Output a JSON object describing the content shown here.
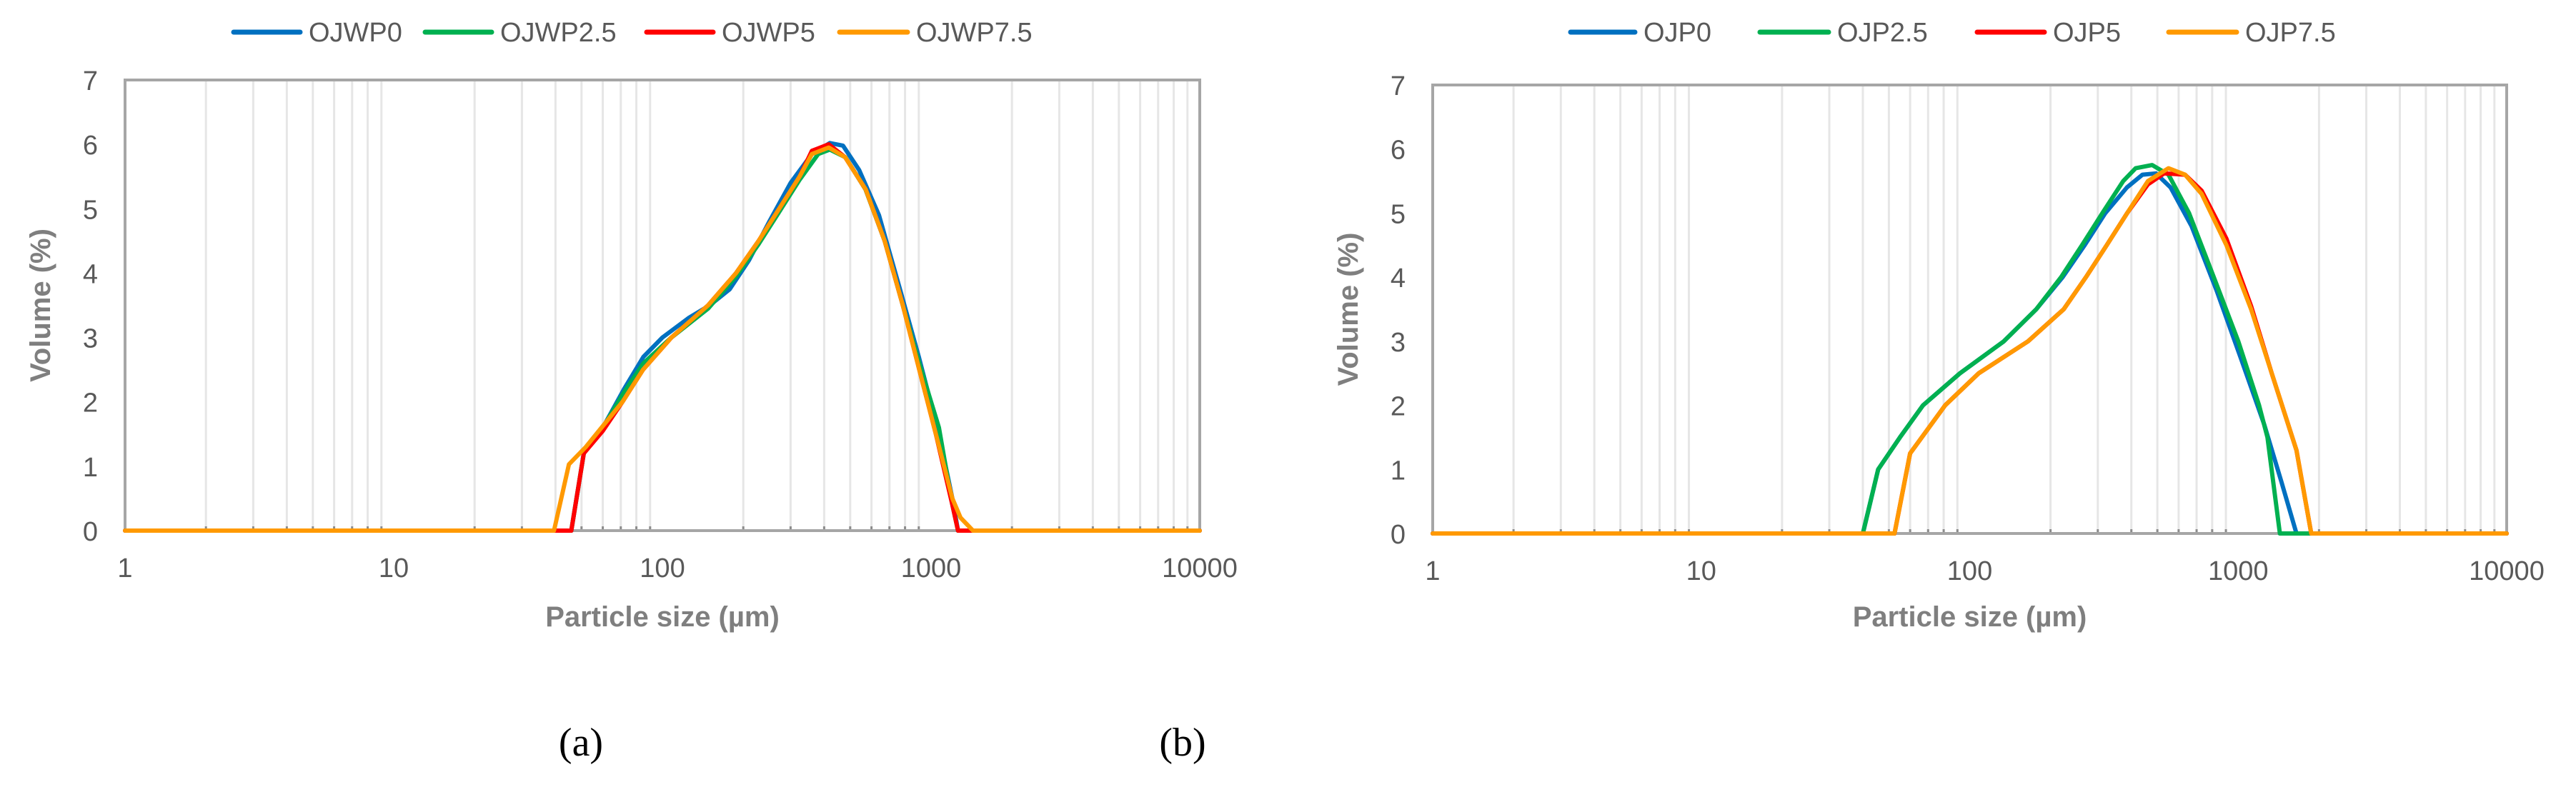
{
  "chart_data": [
    {
      "type": "line",
      "panel_label": "(a)",
      "xlabel": "Particle size (µm)",
      "ylabel": "Volume (%)",
      "x_scale": "log",
      "xlim": [
        1,
        10000
      ],
      "ylim": [
        0,
        7
      ],
      "x_ticks": [
        "1",
        "10",
        "100",
        "1000",
        "10000"
      ],
      "y_ticks": [
        "0",
        "1",
        "2",
        "3",
        "4",
        "5",
        "6",
        "7"
      ],
      "grid": "vertical minor lines",
      "legend": "top",
      "series": [
        {
          "name": "OJWP0",
          "color": "#0070C0",
          "points": [
            [
              1,
              0
            ],
            [
              45.8,
              0
            ],
            [
              51,
              1.2
            ],
            [
              60,
              1.6
            ],
            [
              72,
              2.2
            ],
            [
              85,
              2.7
            ],
            [
              100,
              3.0
            ],
            [
              125,
              3.3
            ],
            [
              150,
              3.5
            ],
            [
              178,
              3.75
            ],
            [
              210,
              4.2
            ],
            [
              250,
              4.8
            ],
            [
              300,
              5.4
            ],
            [
              360,
              5.85
            ],
            [
              420,
              6.02
            ],
            [
              470,
              5.98
            ],
            [
              540,
              5.6
            ],
            [
              640,
              4.9
            ],
            [
              760,
              3.8
            ],
            [
              900,
              2.7
            ],
            [
              1070,
              1.5
            ],
            [
              1200,
              0.5
            ],
            [
              1260,
              0
            ],
            [
              10000,
              0
            ]
          ]
        },
        {
          "name": "OJWP2.5",
          "color": "#00B050",
          "points": [
            [
              1,
              0
            ],
            [
              45.8,
              0
            ],
            [
              51,
              1.2
            ],
            [
              60,
              1.6
            ],
            [
              72,
              2.15
            ],
            [
              85,
              2.6
            ],
            [
              108,
              3.0
            ],
            [
              148,
              3.45
            ],
            [
              188,
              3.95
            ],
            [
              228,
              4.45
            ],
            [
              272,
              4.95
            ],
            [
              324,
              5.45
            ],
            [
              380,
              5.85
            ],
            [
              420,
              5.92
            ],
            [
              480,
              5.8
            ],
            [
              570,
              5.3
            ],
            [
              672,
              4.5
            ],
            [
              785,
              3.5
            ],
            [
              904,
              2.6
            ],
            [
              1070,
              1.6
            ],
            [
              1200,
              0.4
            ],
            [
              1260,
              0
            ],
            [
              10000,
              0
            ]
          ]
        },
        {
          "name": "OJWP5",
          "color": "#FF0000",
          "points": [
            [
              1,
              0
            ],
            [
              45.8,
              0
            ],
            [
              51,
              1.2
            ],
            [
              60,
              1.55
            ],
            [
              71,
              2.0
            ],
            [
              84.7,
              2.5
            ],
            [
              108,
              3.0
            ],
            [
              148,
              3.5
            ],
            [
              188,
              4.0
            ],
            [
              228,
              4.5
            ],
            [
              272,
              5.0
            ],
            [
              324,
              5.5
            ],
            [
              360,
              5.9
            ],
            [
              416,
              6.0
            ],
            [
              479,
              5.8
            ],
            [
              571,
              5.3
            ],
            [
              672,
              4.5
            ],
            [
              785,
              3.5
            ],
            [
              904,
              2.5
            ],
            [
              1042,
              1.5
            ],
            [
              1200,
              0.4
            ],
            [
              1260,
              0
            ],
            [
              10000,
              0
            ]
          ]
        },
        {
          "name": "OJWP7.5",
          "color": "#FF9900",
          "points": [
            [
              1,
              0
            ],
            [
              39.5,
              0
            ],
            [
              44.9,
              1.03
            ],
            [
              51.9,
              1.3
            ],
            [
              71,
              2.0
            ],
            [
              84.7,
              2.5
            ],
            [
              108,
              3.0
            ],
            [
              148,
              3.5
            ],
            [
              188,
              4.0
            ],
            [
              228,
              4.5
            ],
            [
              272,
              5.0
            ],
            [
              324,
              5.5
            ],
            [
              360,
              5.85
            ],
            [
              416,
              5.95
            ],
            [
              479,
              5.8
            ],
            [
              571,
              5.3
            ],
            [
              672,
              4.5
            ],
            [
              785,
              3.5
            ],
            [
              904,
              2.5
            ],
            [
              1042,
              1.5
            ],
            [
              1200,
              0.5
            ],
            [
              1288,
              0.2
            ],
            [
              1432,
              0
            ],
            [
              10000,
              0
            ]
          ]
        }
      ]
    },
    {
      "type": "line",
      "panel_label": "(b)",
      "xlabel": "Particle size (µm)",
      "ylabel": "Volume (%)",
      "x_scale": "log",
      "xlim": [
        1,
        10000
      ],
      "ylim": [
        0,
        7
      ],
      "x_ticks": [
        "1",
        "10",
        "100",
        "1000",
        "10000"
      ],
      "y_ticks": [
        "0",
        "1",
        "2",
        "3",
        "4",
        "5",
        "6",
        "7"
      ],
      "grid": "vertical minor lines",
      "legend": "top",
      "series": [
        {
          "name": "OJP0",
          "color": "#0070C0",
          "points": [
            [
              1,
              0
            ],
            [
              40,
              0
            ],
            [
              45.6,
              1.0
            ],
            [
              55,
              1.5
            ],
            [
              67,
              2.0
            ],
            [
              92,
              2.5
            ],
            [
              134,
              3.0
            ],
            [
              177,
              3.5
            ],
            [
              222,
              4.0
            ],
            [
              268,
              4.5
            ],
            [
              320,
              5.0
            ],
            [
              385,
              5.4
            ],
            [
              440,
              5.6
            ],
            [
              494,
              5.62
            ],
            [
              560,
              5.4
            ],
            [
              670,
              4.8
            ],
            [
              830,
              3.8
            ],
            [
              1030,
              2.7
            ],
            [
              1250,
              1.7
            ],
            [
              1450,
              0.8
            ],
            [
              1648,
              0
            ],
            [
              10000,
              0
            ]
          ]
        },
        {
          "name": "OJP2.5",
          "color": "#00B050",
          "points": [
            [
              1,
              0
            ],
            [
              40,
              0
            ],
            [
              45.6,
              1.0
            ],
            [
              55,
              1.5
            ],
            [
              67,
              2.0
            ],
            [
              92,
              2.5
            ],
            [
              134,
              3.0
            ],
            [
              177,
              3.5
            ],
            [
              219,
              4.0
            ],
            [
              262,
              4.5
            ],
            [
              312,
              5.0
            ],
            [
              373,
              5.5
            ],
            [
              415,
              5.7
            ],
            [
              478,
              5.75
            ],
            [
              550,
              5.6
            ],
            [
              656,
              5.0
            ],
            [
              811,
              4.0
            ],
            [
              1001,
              3.0
            ],
            [
              1196,
              2.0
            ],
            [
              1285,
              1.5
            ],
            [
              1430,
              0
            ],
            [
              10000,
              0
            ]
          ]
        },
        {
          "name": "OJP5",
          "color": "#FF0000",
          "points": [
            [
              1,
              0
            ],
            [
              52.5,
              0
            ],
            [
              60,
              1.25
            ],
            [
              81,
              2.0
            ],
            [
              108,
              2.5
            ],
            [
              165,
              3.0
            ],
            [
              224,
              3.5
            ],
            [
              271,
              4.0
            ],
            [
              324,
              4.5
            ],
            [
              386,
              5.0
            ],
            [
              461,
              5.45
            ],
            [
              530,
              5.62
            ],
            [
              634,
              5.6
            ],
            [
              731,
              5.35
            ],
            [
              904,
              4.6
            ],
            [
              1117,
              3.55
            ],
            [
              1333,
              2.5
            ],
            [
              1648,
              1.3
            ],
            [
              1871,
              0
            ],
            [
              10000,
              0
            ]
          ]
        },
        {
          "name": "OJP7.5",
          "color": "#FF9900",
          "points": [
            [
              1,
              0
            ],
            [
              52.5,
              0
            ],
            [
              60,
              1.25
            ],
            [
              81,
              2.0
            ],
            [
              108,
              2.5
            ],
            [
              165,
              3.0
            ],
            [
              224,
              3.5
            ],
            [
              271,
              4.0
            ],
            [
              324,
              4.5
            ],
            [
              386,
              5.0
            ],
            [
              461,
              5.5
            ],
            [
              550,
              5.7
            ],
            [
              634,
              5.6
            ],
            [
              731,
              5.3
            ],
            [
              904,
              4.5
            ],
            [
              1117,
              3.5
            ],
            [
              1333,
              2.5
            ],
            [
              1648,
              1.3
            ],
            [
              1871,
              0
            ],
            [
              10000,
              0
            ]
          ]
        }
      ]
    }
  ]
}
